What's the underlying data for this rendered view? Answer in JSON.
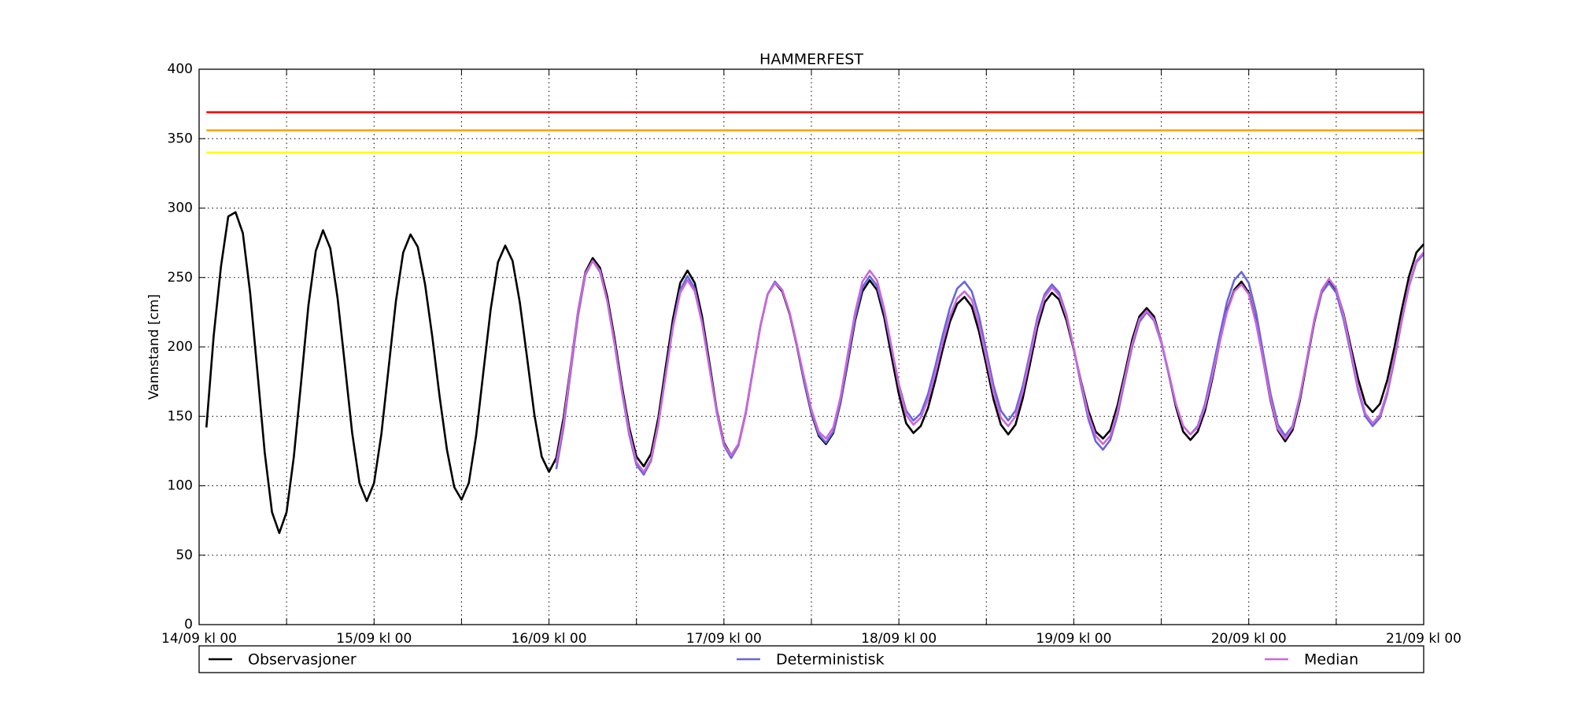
{
  "chart_data": {
    "type": "line",
    "title": "HAMMERFEST",
    "ylabel": "Vannstand [cm]",
    "x": [
      1,
      2,
      3,
      4,
      5,
      6,
      7,
      8,
      9,
      10,
      11,
      12,
      13,
      14,
      15,
      16,
      17,
      18,
      19,
      20,
      21,
      22,
      23,
      24,
      25,
      26,
      27,
      28,
      29,
      30,
      31,
      32,
      33,
      34,
      35,
      36,
      37,
      38,
      39,
      40,
      41,
      42,
      43,
      44,
      45,
      46,
      47,
      48,
      49,
      50,
      51,
      52,
      53,
      54,
      55,
      56,
      57,
      58,
      59,
      60,
      61,
      62,
      63,
      64,
      65,
      66,
      67,
      68,
      69,
      70,
      71,
      72,
      73,
      74,
      75,
      76,
      77,
      78,
      79,
      80,
      81,
      82,
      83,
      84,
      85,
      86,
      87,
      88,
      89,
      90,
      91,
      92,
      93,
      94,
      95,
      96,
      97,
      98,
      99,
      100,
      101,
      102,
      103,
      104,
      105,
      106,
      107,
      108,
      109,
      110,
      111,
      112,
      113,
      114,
      115,
      116,
      117,
      118,
      119,
      120,
      121,
      122,
      123,
      124,
      125,
      126,
      127,
      128,
      129,
      130,
      131,
      132,
      133,
      134,
      135,
      136,
      137,
      138,
      139,
      140,
      141,
      142,
      143,
      144,
      145,
      146,
      147,
      148,
      149,
      150,
      151,
      152,
      153,
      154,
      155,
      156,
      157,
      158,
      159,
      160,
      161,
      162,
      163,
      164,
      165,
      166,
      167,
      168
    ],
    "series": [
      {
        "name": "Observasjoner",
        "color": "#000000",
        "values": [
          142,
          208,
          258,
          294,
          297,
          282,
          239,
          182,
          124,
          81,
          66,
          81,
          121,
          175,
          230,
          269,
          284,
          271,
          235,
          187,
          138,
          102,
          89,
          102,
          137,
          185,
          233,
          268,
          281,
          272,
          245,
          207,
          164,
          126,
          99,
          90,
          102,
          136,
          182,
          227,
          261,
          273,
          262,
          232,
          192,
          151,
          121,
          110,
          120,
          149,
          187,
          226,
          254,
          264,
          257,
          236,
          206,
          172,
          142,
          121,
          114,
          123,
          149,
          185,
          220,
          246,
          255,
          246,
          222,
          189,
          155,
          131,
          122,
          130,
          153,
          184,
          215,
          238,
          246,
          240,
          224,
          201,
          175,
          152,
          136,
          130,
          138,
          160,
          189,
          219,
          240,
          248,
          241,
          221,
          193,
          166,
          145,
          138,
          143,
          156,
          176,
          198,
          218,
          231,
          236,
          229,
          211,
          187,
          162,
          144,
          137,
          144,
          163,
          188,
          214,
          232,
          239,
          234,
          219,
          198,
          175,
          154,
          139,
          134,
          140,
          158,
          181,
          205,
          222,
          228,
          222,
          204,
          181,
          157,
          139,
          133,
          139,
          154,
          177,
          203,
          226,
          241,
          247,
          239,
          218,
          190,
          161,
          140,
          132,
          140,
          161,
          190,
          218,
          239,
          247,
          241,
          224,
          200,
          177,
          159,
          153,
          159,
          176,
          200,
          227,
          251,
          268,
          274
        ]
      },
      {
        "name": "Deterministisk",
        "color": "#6666dd",
        "values": [
          null,
          null,
          null,
          null,
          null,
          null,
          null,
          null,
          null,
          null,
          null,
          null,
          null,
          null,
          null,
          null,
          null,
          null,
          null,
          null,
          null,
          null,
          null,
          null,
          null,
          null,
          null,
          null,
          null,
          null,
          null,
          null,
          null,
          null,
          null,
          null,
          null,
          null,
          null,
          null,
          null,
          null,
          null,
          null,
          null,
          null,
          null,
          null,
          112,
          142,
          183,
          223,
          252,
          262,
          254,
          233,
          202,
          168,
          137,
          115,
          108,
          118,
          144,
          180,
          215,
          241,
          251,
          242,
          218,
          186,
          153,
          129,
          120,
          129,
          152,
          184,
          215,
          238,
          247,
          241,
          225,
          202,
          176,
          153,
          137,
          131,
          139,
          161,
          191,
          221,
          243,
          251,
          244,
          225,
          199,
          173,
          154,
          147,
          152,
          166,
          186,
          208,
          228,
          242,
          247,
          240,
          222,
          197,
          172,
          154,
          147,
          154,
          172,
          196,
          221,
          238,
          245,
          239,
          223,
          199,
          172,
          148,
          132,
          126,
          133,
          151,
          176,
          200,
          218,
          225,
          219,
          203,
          181,
          159,
          143,
          137,
          143,
          159,
          183,
          208,
          232,
          248,
          254,
          246,
          225,
          195,
          166,
          144,
          136,
          143,
          164,
          191,
          219,
          239,
          246,
          239,
          220,
          195,
          169,
          150,
          143,
          149,
          166,
          191,
          219,
          244,
          261,
          267
        ]
      },
      {
        "name": "Median",
        "color": "#cc66dd",
        "values": [
          null,
          null,
          null,
          null,
          null,
          null,
          null,
          null,
          null,
          null,
          null,
          null,
          null,
          null,
          null,
          null,
          null,
          null,
          null,
          null,
          null,
          null,
          null,
          null,
          null,
          null,
          null,
          null,
          null,
          null,
          null,
          null,
          null,
          null,
          null,
          null,
          null,
          null,
          null,
          null,
          null,
          null,
          null,
          null,
          null,
          null,
          null,
          null,
          116,
          145,
          186,
          226,
          253,
          262,
          255,
          233,
          203,
          169,
          139,
          117,
          110,
          119,
          145,
          179,
          214,
          239,
          248,
          240,
          217,
          185,
          154,
          130,
          122,
          130,
          153,
          184,
          215,
          238,
          246,
          241,
          225,
          202,
          178,
          155,
          139,
          134,
          142,
          164,
          195,
          225,
          247,
          255,
          248,
          227,
          200,
          172,
          151,
          144,
          149,
          162,
          181,
          203,
          222,
          235,
          240,
          234,
          216,
          192,
          167,
          149,
          143,
          150,
          168,
          193,
          218,
          236,
          243,
          237,
          222,
          199,
          174,
          151,
          136,
          130,
          136,
          154,
          178,
          202,
          220,
          226,
          220,
          204,
          182,
          159,
          143,
          137,
          142,
          157,
          179,
          203,
          225,
          240,
          245,
          238,
          217,
          190,
          162,
          141,
          134,
          142,
          163,
          192,
          220,
          241,
          249,
          242,
          223,
          197,
          171,
          152,
          145,
          151,
          168,
          193,
          220,
          245,
          262,
          268
        ]
      }
    ],
    "hlines": [
      {
        "value": 369,
        "color": "#ff0000"
      },
      {
        "value": 356,
        "color": "#ffa500"
      },
      {
        "value": 340,
        "color": "#ffff00"
      }
    ],
    "xlim": [
      0,
      168
    ],
    "ylim": [
      0,
      400
    ],
    "xticks": [
      {
        "value": 0,
        "label": "14/09 kl 00"
      },
      {
        "value": 12,
        "label": null
      },
      {
        "value": 24,
        "label": "15/09 kl 00"
      },
      {
        "value": 36,
        "label": null
      },
      {
        "value": 48,
        "label": "16/09 kl 00"
      },
      {
        "value": 60,
        "label": null
      },
      {
        "value": 72,
        "label": "17/09 kl 00"
      },
      {
        "value": 84,
        "label": null
      },
      {
        "value": 96,
        "label": "18/09 kl 00"
      },
      {
        "value": 108,
        "label": null
      },
      {
        "value": 120,
        "label": "19/09 kl 00"
      },
      {
        "value": 132,
        "label": null
      },
      {
        "value": 144,
        "label": "20/09 kl 00"
      },
      {
        "value": 156,
        "label": null
      },
      {
        "value": 168,
        "label": "21/09 kl 00"
      }
    ],
    "yticks": [
      0,
      50,
      100,
      150,
      200,
      250,
      300,
      350,
      400
    ],
    "grid": true,
    "legend": "bottom"
  }
}
